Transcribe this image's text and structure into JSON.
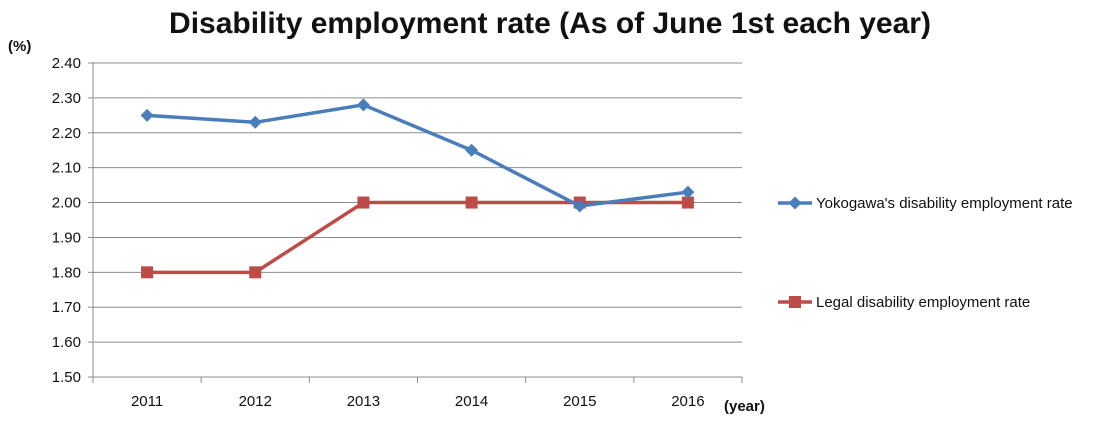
{
  "chart_data": {
    "type": "line",
    "title": "Disability employment rate (As of June 1st each year)",
    "ylabel": "(%)",
    "xlabel": "(year)",
    "categories": [
      "2011",
      "2012",
      "2013",
      "2014",
      "2015",
      "2016"
    ],
    "ylim": [
      1.5,
      2.4
    ],
    "y_ticks": [
      "1.50",
      "1.60",
      "1.70",
      "1.80",
      "1.90",
      "2.00",
      "2.10",
      "2.20",
      "2.30",
      "2.40"
    ],
    "grid": true,
    "legend_position": "right",
    "series": [
      {
        "name": "Yokogawa's disability employment rate",
        "values": [
          2.25,
          2.23,
          2.28,
          2.15,
          1.99,
          2.03
        ],
        "color": "#4a7ebb",
        "marker": "diamond"
      },
      {
        "name": "Legal disability employment rate",
        "values": [
          1.8,
          1.8,
          2.0,
          2.0,
          2.0,
          2.0
        ],
        "color": "#be4b48",
        "marker": "square"
      }
    ]
  }
}
